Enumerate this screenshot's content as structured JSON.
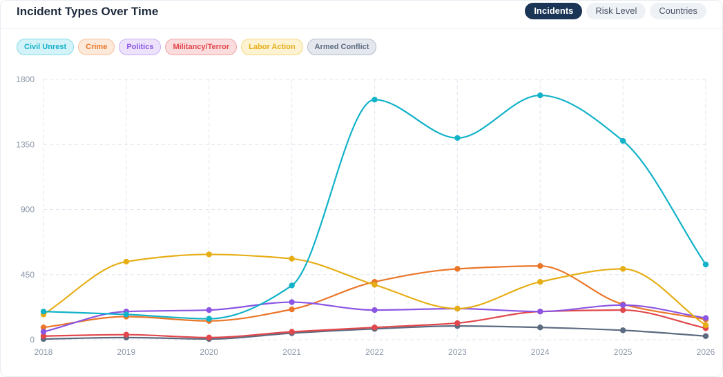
{
  "header": {
    "title": "Incident Types Over Time",
    "tabs": [
      {
        "label": "Incidents",
        "active": true
      },
      {
        "label": "Risk Level",
        "active": false
      },
      {
        "label": "Countries",
        "active": false
      }
    ]
  },
  "legend": [
    {
      "label": "Civil Unrest",
      "color": "#12b2c9",
      "bg": "#d3f3f8",
      "border": "#86dbe8"
    },
    {
      "label": "Crime",
      "color": "#ea7628",
      "bg": "#fde9da",
      "border": "#f6bf98"
    },
    {
      "label": "Politics",
      "color": "#8b55e3",
      "bg": "#ece2fc",
      "border": "#c8adf3"
    },
    {
      "label": "Militancy/Terror",
      "color": "#e2474b",
      "bg": "#fbdcdd",
      "border": "#f0a2a4"
    },
    {
      "label": "Labor Action",
      "color": "#e6ae16",
      "bg": "#fdf3d3",
      "border": "#f1d67f"
    },
    {
      "label": "Armed Conflict",
      "color": "#5c6a80",
      "bg": "#e4e8ee",
      "border": "#b3bccb"
    }
  ],
  "chart_data": {
    "type": "line",
    "title": "Incident Types Over Time",
    "x": [
      "2018",
      "2019",
      "2020",
      "2021",
      "2022",
      "2023",
      "2024",
      "2025",
      "2026"
    ],
    "ylim": [
      0,
      1800
    ],
    "yticks": [
      "0",
      "450",
      "900",
      "1350",
      "1800"
    ],
    "grid": true,
    "legend_position": "top-left",
    "smooth": true,
    "series": [
      {
        "name": "Civil Unrest",
        "color": "#12b2c9",
        "values": [
          195,
          175,
          145,
          375,
          1660,
          1395,
          1690,
          1375,
          520
        ]
      },
      {
        "name": "Crime",
        "color": "#ea7628",
        "values": [
          85,
          160,
          130,
          210,
          400,
          490,
          510,
          245,
          140
        ]
      },
      {
        "name": "Politics",
        "color": "#8b55e3",
        "values": [
          55,
          195,
          205,
          260,
          205,
          215,
          195,
          240,
          150
        ]
      },
      {
        "name": "Militancy/Terror",
        "color": "#e2474b",
        "values": [
          25,
          35,
          15,
          55,
          85,
          115,
          195,
          205,
          80
        ]
      },
      {
        "name": "Labor Action",
        "color": "#e6ae16",
        "values": [
          175,
          540,
          590,
          560,
          380,
          215,
          400,
          490,
          100
        ]
      },
      {
        "name": "Armed Conflict",
        "color": "#5c6a80",
        "values": [
          5,
          15,
          5,
          45,
          75,
          95,
          85,
          65,
          25
        ]
      }
    ]
  }
}
